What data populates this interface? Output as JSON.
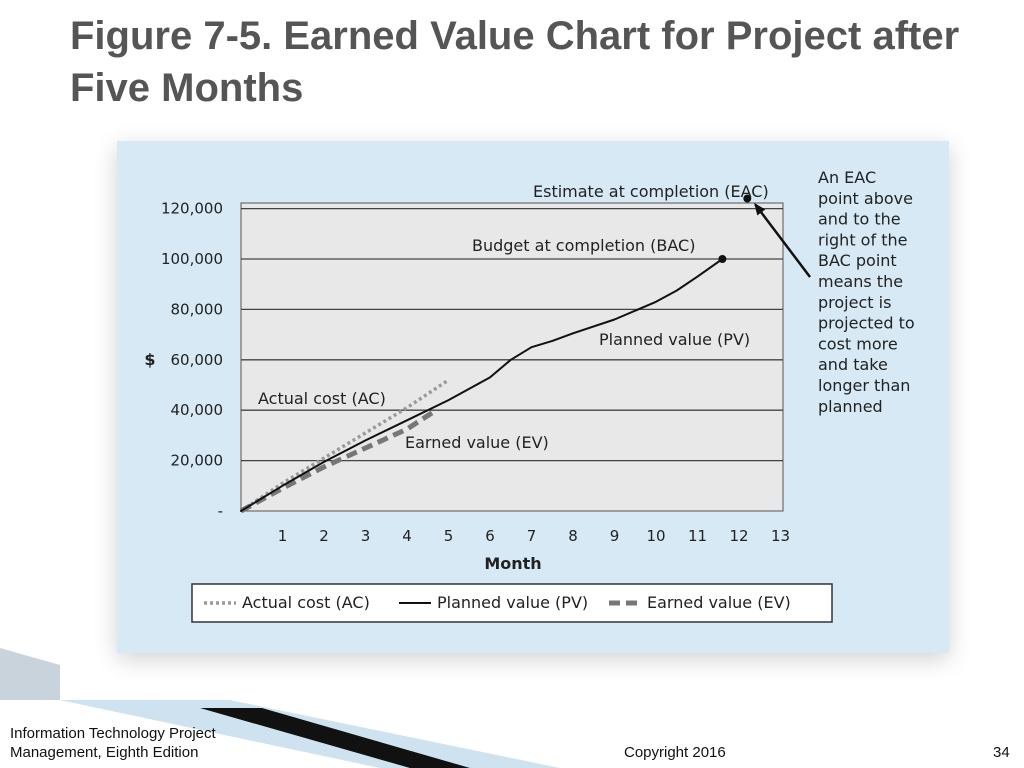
{
  "slide": {
    "title": "Figure 7-5. Earned Value Chart for Project after Five Months",
    "footer": {
      "book_line1": "Information Technology Project",
      "book_line2": "Management, Eighth Edition",
      "copyright": "Copyright 2016",
      "page_number": "34"
    },
    "colors": {
      "title": "#555555",
      "panel_background": "#d6e9f5",
      "plot_background": "#e8e8e8"
    }
  },
  "chart_data": {
    "type": "line",
    "title": "",
    "xlabel": "Month",
    "ylabel": "$",
    "xlim": [
      0,
      13
    ],
    "ylim": [
      0,
      130000
    ],
    "x_ticks": [
      "1",
      "2",
      "3",
      "4",
      "5",
      "6",
      "7",
      "8",
      "9",
      "10",
      "11",
      "12",
      "13"
    ],
    "y_ticks": [
      {
        "value": 0,
        "label": "-"
      },
      {
        "value": 20000,
        "label": "20,000"
      },
      {
        "value": 40000,
        "label": "40,000"
      },
      {
        "value": 60000,
        "label": "60,000"
      },
      {
        "value": 80000,
        "label": "80,000"
      },
      {
        "value": 100000,
        "label": "100,000"
      },
      {
        "value": 120000,
        "label": "120,000"
      }
    ],
    "grid": "horizontal",
    "legend_position": "bottom",
    "series": [
      {
        "name": "Actual cost (AC)",
        "style": "dotted",
        "color": "#9a9a9a",
        "points": [
          [
            0,
            0
          ],
          [
            1,
            11000
          ],
          [
            2,
            21000
          ],
          [
            3,
            31000
          ],
          [
            4,
            41000
          ],
          [
            5,
            52000
          ]
        ]
      },
      {
        "name": "Planned value (PV)",
        "style": "solid",
        "color": "#111111",
        "points": [
          [
            0,
            0
          ],
          [
            1,
            10000
          ],
          [
            2,
            19500
          ],
          [
            3,
            28000
          ],
          [
            4,
            36000
          ],
          [
            5,
            44000
          ],
          [
            6,
            53000
          ],
          [
            6.5,
            60000
          ],
          [
            7,
            65000
          ],
          [
            7.5,
            67500
          ],
          [
            8,
            70500
          ],
          [
            9,
            76000
          ],
          [
            10,
            83000
          ],
          [
            10.5,
            87500
          ],
          [
            11,
            93000
          ],
          [
            11.6,
            100000
          ]
        ]
      },
      {
        "name": "Earned value (EV)",
        "style": "dashed",
        "color": "#777777",
        "points": [
          [
            0,
            0
          ],
          [
            1,
            9000
          ],
          [
            2,
            17500
          ],
          [
            3,
            25000
          ],
          [
            4,
            32500
          ],
          [
            4.7,
            40000
          ]
        ]
      }
    ],
    "points_of_interest": [
      {
        "name": "Estimate at completion (EAC)",
        "x": 12.2,
        "y": 124000
      },
      {
        "name": "Budget at completion (BAC)",
        "x": 11.6,
        "y": 100000
      }
    ],
    "annotations": {
      "eac_label": "Estimate at completion (EAC)",
      "bac_label": "Budget at completion (BAC)",
      "pv_label": "Planned value (PV)",
      "ac_label": "Actual cost (AC)",
      "ev_label": "Earned value (EV)",
      "callout_lines": [
        "An EAC",
        "point above",
        "and to the",
        "right of the",
        "BAC point",
        "means the",
        "project is",
        "projected to",
        "cost more",
        "and take",
        "longer than",
        "planned"
      ]
    }
  }
}
